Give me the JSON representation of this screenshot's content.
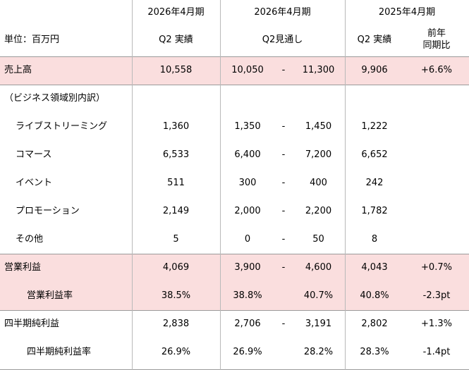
{
  "header": {
    "period_a": "2026年4月期",
    "period_b": "2026年4月期",
    "period_c": "2025年4月期",
    "unit": "単位：百万円",
    "col_a": "Q2 実績",
    "col_b": "Q2見通し",
    "col_c": "Q2 実績",
    "col_d_line1": "前年",
    "col_d_line2": "同期比"
  },
  "rows": [
    {
      "label": "売上高",
      "actual": "10,558",
      "fc_low": "10,050",
      "dash": "-",
      "fc_high": "11,300",
      "prev": "9,906",
      "yoy": "+6.6%"
    },
    {
      "label": "（ビジネス領域別内訳）",
      "actual": "",
      "fc_low": "",
      "dash": "",
      "fc_high": "",
      "prev": "",
      "yoy": ""
    },
    {
      "label": "ライブストリーミング",
      "actual": "1,360",
      "fc_low": "1,350",
      "dash": "-",
      "fc_high": "1,450",
      "prev": "1,222",
      "yoy": ""
    },
    {
      "label": "コマース",
      "actual": "6,533",
      "fc_low": "6,400",
      "dash": "-",
      "fc_high": "7,200",
      "prev": "6,652",
      "yoy": ""
    },
    {
      "label": "イベント",
      "actual": "511",
      "fc_low": "300",
      "dash": "-",
      "fc_high": "400",
      "prev": "242",
      "yoy": ""
    },
    {
      "label": "プロモーション",
      "actual": "2,149",
      "fc_low": "2,000",
      "dash": "-",
      "fc_high": "2,200",
      "prev": "1,782",
      "yoy": ""
    },
    {
      "label": "その他",
      "actual": "5",
      "fc_low": "0",
      "dash": "-",
      "fc_high": "50",
      "prev": "8",
      "yoy": ""
    },
    {
      "label": "営業利益",
      "actual": "4,069",
      "fc_low": "3,900",
      "dash": "-",
      "fc_high": "4,600",
      "prev": "4,043",
      "yoy": "+0.7%"
    },
    {
      "label": "営業利益率",
      "actual": "38.5%",
      "fc_low": "38.8%",
      "dash": "",
      "fc_high": "40.7%",
      "prev": "40.8%",
      "yoy": "-2.3pt"
    },
    {
      "label": "四半期純利益",
      "actual": "2,838",
      "fc_low": "2,706",
      "dash": "-",
      "fc_high": "3,191",
      "prev": "2,802",
      "yoy": "+1.3%"
    },
    {
      "label": "四半期純利益率",
      "actual": "26.9%",
      "fc_low": "26.9%",
      "dash": "",
      "fc_high": "28.2%",
      "prev": "28.3%",
      "yoy": "-1.4pt"
    }
  ],
  "colors": {
    "highlight": "#fadede",
    "grid": "#b9b9b9"
  }
}
